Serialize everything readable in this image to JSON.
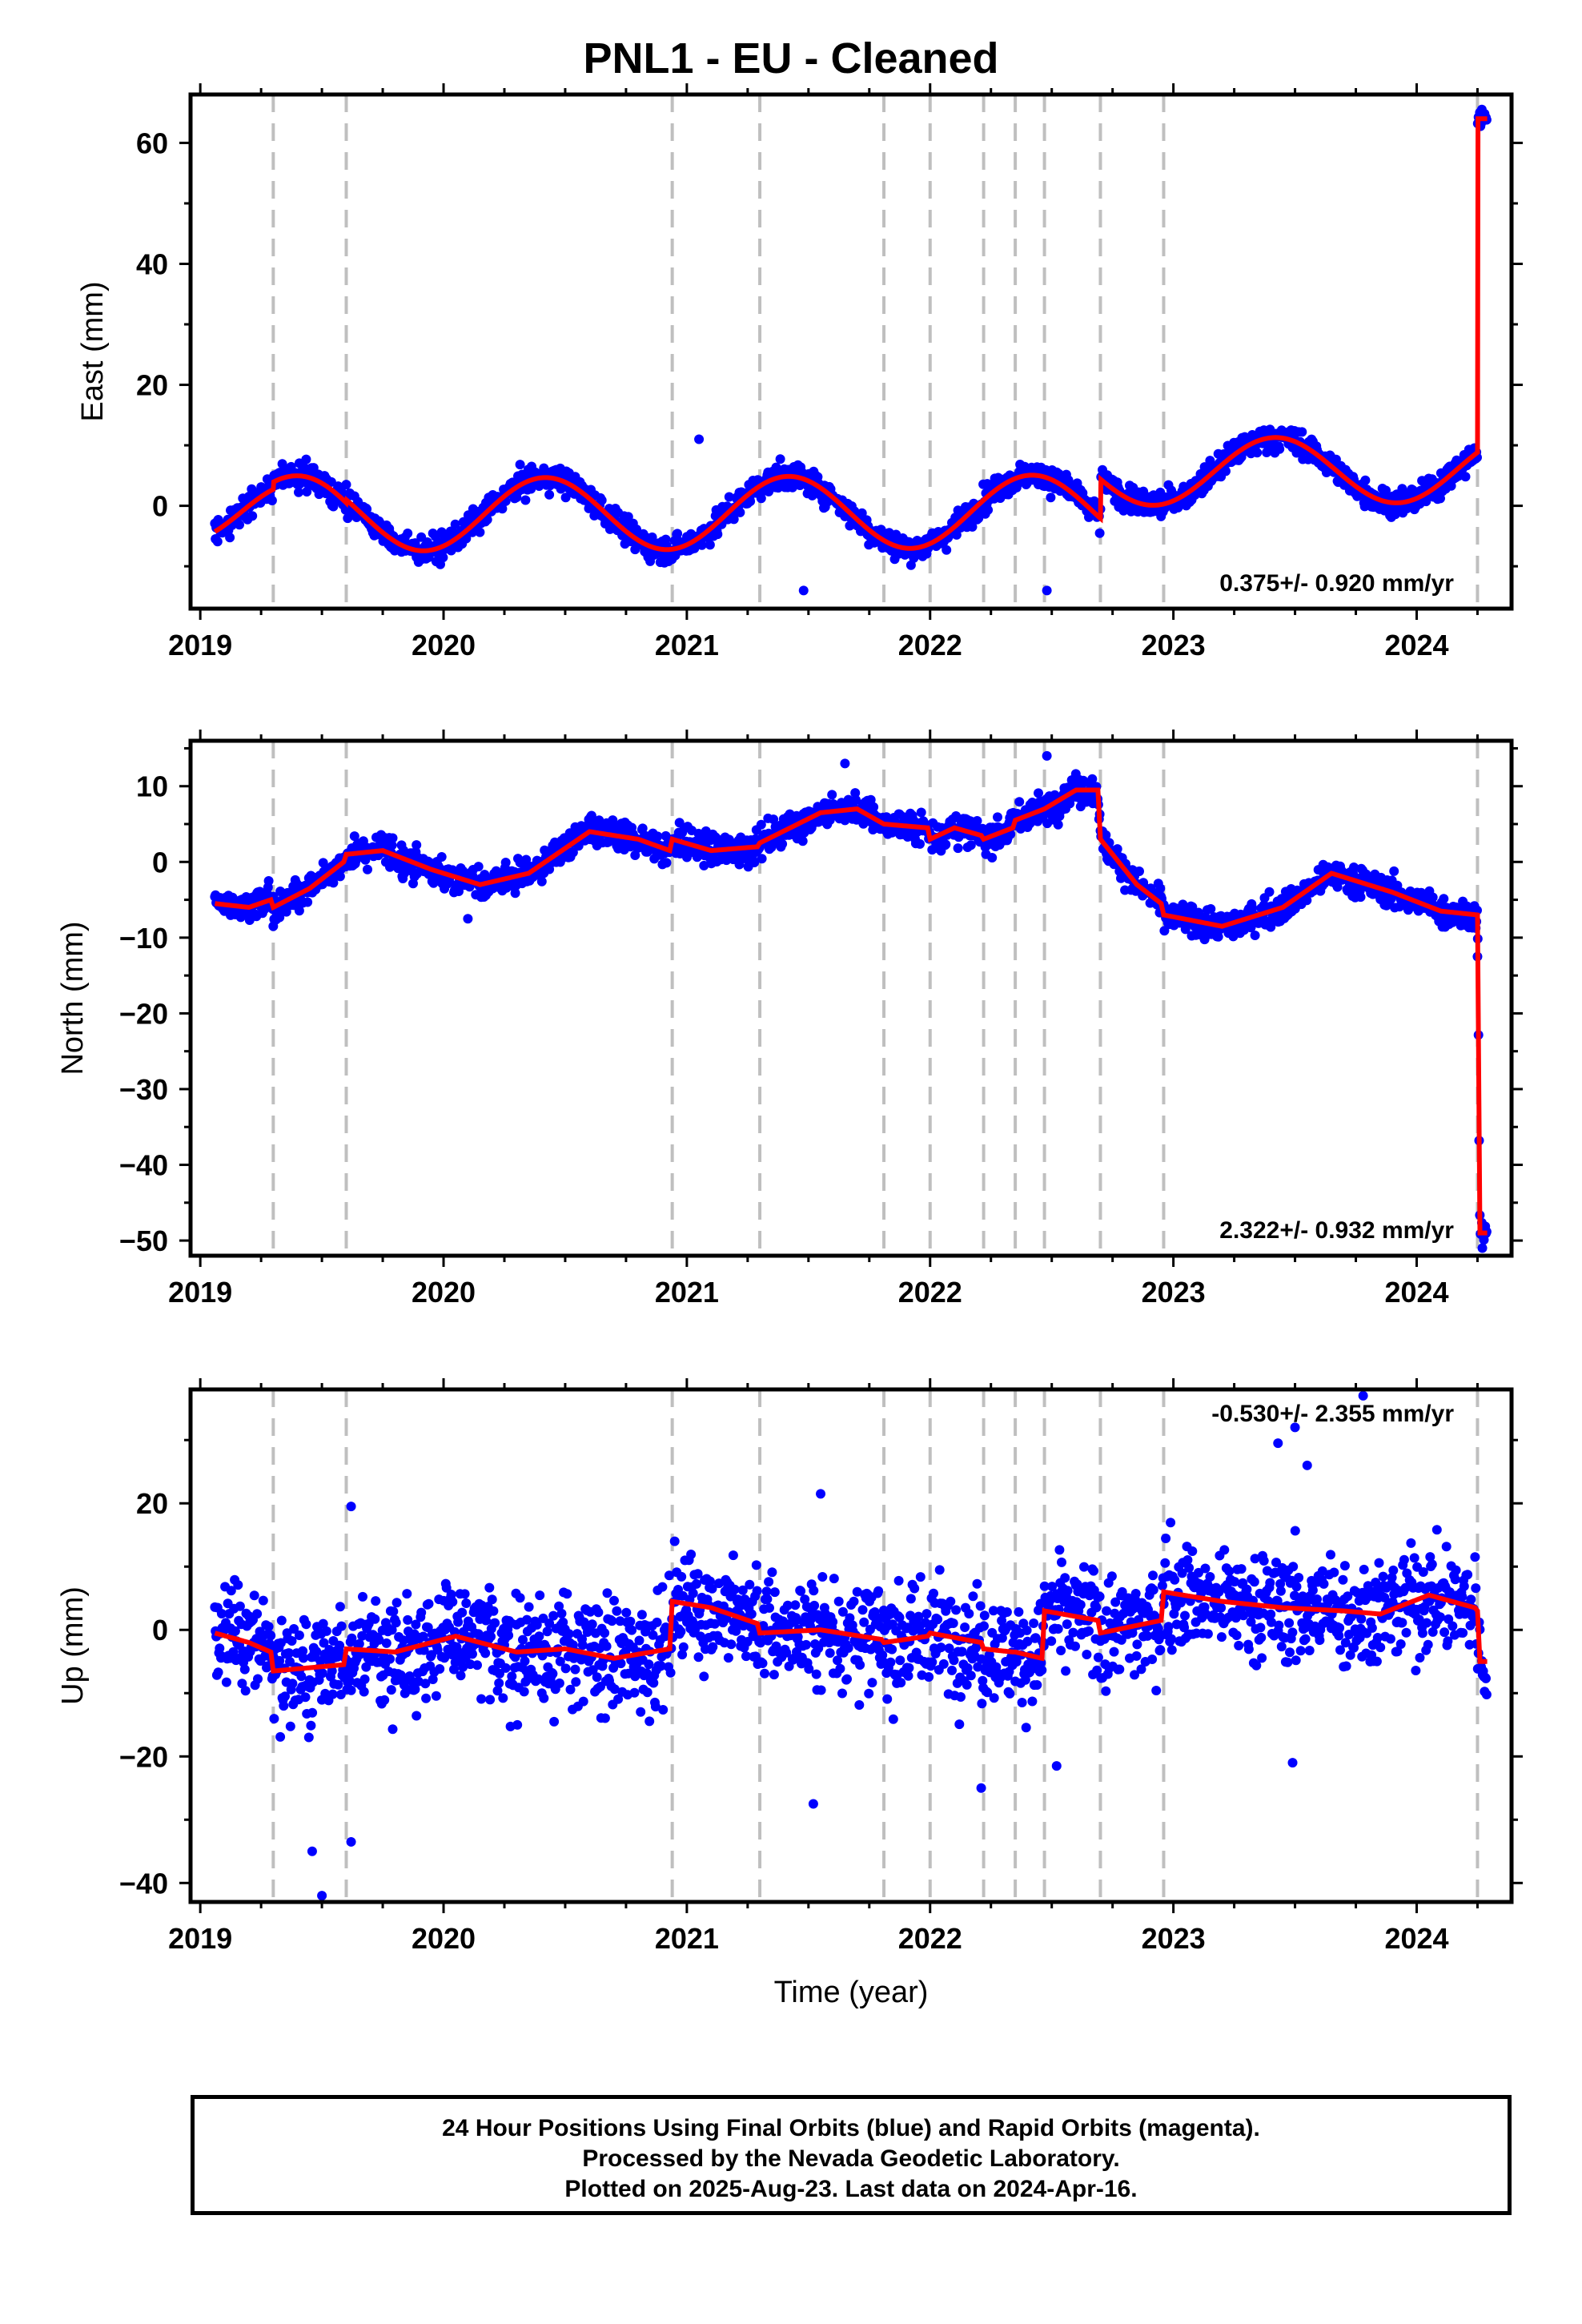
{
  "title": "PNL1  - EU - Cleaned",
  "footer": {
    "line1": "24 Hour Positions Using Final Orbits (blue) and Rapid Orbits (magenta).",
    "line2": "Processed by the Nevada Geodetic Laboratory.",
    "line3": "Plotted on 2025-Aug-23. Last data on 2024-Apr-16."
  },
  "colors": {
    "points": "#0000ff",
    "model": "#ff0000",
    "events": "#bfbfbf",
    "axes": "#000000"
  },
  "chart_data": [
    {
      "type": "scatter",
      "ylabel": "East (mm)",
      "xlabel": "",
      "xlim": [
        2018.96,
        2024.39
      ],
      "ylim": [
        -17,
        68
      ],
      "xticks": [
        2019,
        2020,
        2021,
        2022,
        2023,
        2024
      ],
      "yticks": [
        0,
        20,
        40,
        60
      ],
      "rate_label": "0.375+/- 0.920 mm/yr",
      "rate_position": "bottom-right",
      "data_start": 2019.06,
      "data_end": 2024.29,
      "event_lines": [
        2019.3,
        2019.6,
        2020.94,
        2021.3,
        2021.81,
        2022.0,
        2022.22,
        2022.35,
        2022.47,
        2022.7,
        2022.96,
        2024.25
      ],
      "model_segments": [
        {
          "start": 2019.06,
          "end": 2019.3,
          "offset": -0.5,
          "trend": -5.0,
          "amplitude": 6.0,
          "phase": 0.05
        },
        {
          "start": 2019.3,
          "end": 2019.6,
          "offset": -0.5,
          "trend": -5.0,
          "amplitude": 6.0,
          "phase": 0.05
        },
        {
          "start": 2019.6,
          "end": 2022.7,
          "offset": -1.5,
          "trend": 0.2,
          "amplitude": 6.0,
          "phase": 0.05
        },
        {
          "start": 2022.7,
          "end": 2024.25,
          "offset": 5.5,
          "trend": 0.4,
          "amplitude": 5.5,
          "phase": 0.05
        },
        {
          "start": 2024.25,
          "end": 2024.29,
          "offset": 64.0,
          "trend": 0,
          "amplitude": 0,
          "phase": 0
        }
      ],
      "scatter_noise_mm": 1.5,
      "outliers": [
        [
          2019.6,
          3.5
        ],
        [
          2021.05,
          11.0
        ],
        [
          2021.48,
          -14.0
        ],
        [
          2022.48,
          -14.0
        ]
      ]
    },
    {
      "type": "scatter",
      "ylabel": "North (mm)",
      "xlabel": "",
      "xlim": [
        2018.96,
        2024.39
      ],
      "ylim": [
        -52,
        16
      ],
      "xticks": [
        2019,
        2020,
        2021,
        2022,
        2023,
        2024
      ],
      "yticks": [
        10,
        0,
        -10,
        -20,
        -30,
        -40,
        -50
      ],
      "rate_label": "2.322+/- 0.932 mm/yr",
      "rate_position": "bottom-right",
      "data_start": 2019.06,
      "data_end": 2024.29,
      "event_lines": [
        2019.3,
        2019.6,
        2020.94,
        2021.3,
        2021.81,
        2022.0,
        2022.22,
        2022.35,
        2022.47,
        2022.7,
        2022.96,
        2024.25
      ],
      "model_keypoints": [
        [
          2019.06,
          -5.5
        ],
        [
          2019.2,
          -6.0
        ],
        [
          2019.29,
          -5.0
        ],
        [
          2019.3,
          -6.0
        ],
        [
          2019.45,
          -3.5
        ],
        [
          2019.59,
          0.0
        ],
        [
          2019.6,
          1.0
        ],
        [
          2019.75,
          1.5
        ],
        [
          2019.95,
          -1.0
        ],
        [
          2020.15,
          -3.0
        ],
        [
          2020.35,
          -1.5
        ],
        [
          2020.6,
          4.0
        ],
        [
          2020.8,
          3.0
        ],
        [
          2020.93,
          1.5
        ],
        [
          2020.94,
          3.0
        ],
        [
          2021.1,
          1.5
        ],
        [
          2021.29,
          2.0
        ],
        [
          2021.3,
          2.5
        ],
        [
          2021.55,
          6.5
        ],
        [
          2021.7,
          7.0
        ],
        [
          2021.81,
          5.0
        ],
        [
          2021.99,
          4.5
        ],
        [
          2022.0,
          3.0
        ],
        [
          2022.1,
          4.5
        ],
        [
          2022.21,
          3.5
        ],
        [
          2022.22,
          3.0
        ],
        [
          2022.34,
          4.5
        ],
        [
          2022.35,
          5.5
        ],
        [
          2022.47,
          7.0
        ],
        [
          2022.6,
          9.5
        ],
        [
          2022.69,
          9.5
        ],
        [
          2022.7,
          3.0
        ],
        [
          2022.85,
          -3.0
        ],
        [
          2022.95,
          -5.5
        ],
        [
          2022.96,
          -7.0
        ],
        [
          2023.2,
          -8.5
        ],
        [
          2023.45,
          -6.0
        ],
        [
          2023.65,
          -1.5
        ],
        [
          2023.9,
          -4.0
        ],
        [
          2024.1,
          -6.5
        ],
        [
          2024.25,
          -7.0
        ],
        [
          2024.26,
          -49.0
        ],
        [
          2024.29,
          -49.0
        ]
      ],
      "scatter_noise_mm": 1.4,
      "outliers": [
        [
          2019.3,
          -8.5
        ],
        [
          2020.1,
          -7.5
        ],
        [
          2021.65,
          13.0
        ],
        [
          2022.48,
          14.0
        ],
        [
          2024.27,
          -51.0
        ],
        [
          2024.25,
          -12.5
        ]
      ]
    },
    {
      "type": "scatter",
      "ylabel": "Up (mm)",
      "xlabel": "Time (year)",
      "xlim": [
        2018.96,
        2024.39
      ],
      "ylim": [
        -43,
        38
      ],
      "xticks": [
        2019,
        2020,
        2021,
        2022,
        2023,
        2024
      ],
      "yticks": [
        20,
        0,
        -20,
        -40
      ],
      "rate_label": "-0.530+/- 2.355 mm/yr",
      "rate_position": "top-right",
      "data_start": 2019.06,
      "data_end": 2024.29,
      "event_lines": [
        2019.3,
        2019.6,
        2020.94,
        2021.3,
        2021.81,
        2022.0,
        2022.22,
        2022.35,
        2022.47,
        2022.7,
        2022.96,
        2024.25
      ],
      "model_keypoints": [
        [
          2019.06,
          -0.5
        ],
        [
          2019.2,
          -2.0
        ],
        [
          2019.29,
          -3.5
        ],
        [
          2019.3,
          -6.5
        ],
        [
          2019.59,
          -5.5
        ],
        [
          2019.6,
          -3.0
        ],
        [
          2019.8,
          -3.5
        ],
        [
          2020.05,
          -1.0
        ],
        [
          2020.3,
          -3.5
        ],
        [
          2020.5,
          -3.0
        ],
        [
          2020.7,
          -4.5
        ],
        [
          2020.93,
          -3.0
        ],
        [
          2020.94,
          4.5
        ],
        [
          2021.1,
          3.5
        ],
        [
          2021.29,
          1.0
        ],
        [
          2021.3,
          -0.5
        ],
        [
          2021.55,
          0.0
        ],
        [
          2021.8,
          -1.5
        ],
        [
          2021.81,
          -2.0
        ],
        [
          2021.99,
          -1.0
        ],
        [
          2022.0,
          -0.5
        ],
        [
          2022.21,
          -2.0
        ],
        [
          2022.22,
          -3.0
        ],
        [
          2022.34,
          -3.5
        ],
        [
          2022.35,
          -3.5
        ],
        [
          2022.46,
          -4.5
        ],
        [
          2022.47,
          3.0
        ],
        [
          2022.69,
          1.5
        ],
        [
          2022.7,
          -0.5
        ],
        [
          2022.95,
          1.5
        ],
        [
          2022.96,
          6.0
        ],
        [
          2023.2,
          4.5
        ],
        [
          2023.45,
          3.5
        ],
        [
          2023.7,
          3.0
        ],
        [
          2023.85,
          2.5
        ],
        [
          2024.05,
          5.5
        ],
        [
          2024.24,
          3.5
        ],
        [
          2024.25,
          3.0
        ],
        [
          2024.26,
          -5.0
        ]
      ],
      "scatter_noise_mm": 6.0,
      "outliers": [
        [
          2019.5,
          -42.0
        ],
        [
          2019.46,
          -35.0
        ],
        [
          2019.62,
          19.5
        ],
        [
          2019.62,
          -33.5
        ],
        [
          2021.52,
          -27.5
        ],
        [
          2023.43,
          29.5
        ],
        [
          2023.5,
          32.0
        ],
        [
          2023.55,
          26.0
        ],
        [
          2023.78,
          37.0
        ],
        [
          2021.55,
          21.5
        ],
        [
          2022.21,
          -25.0
        ],
        [
          2022.52,
          -21.5
        ],
        [
          2023.49,
          -21.0
        ]
      ]
    }
  ]
}
